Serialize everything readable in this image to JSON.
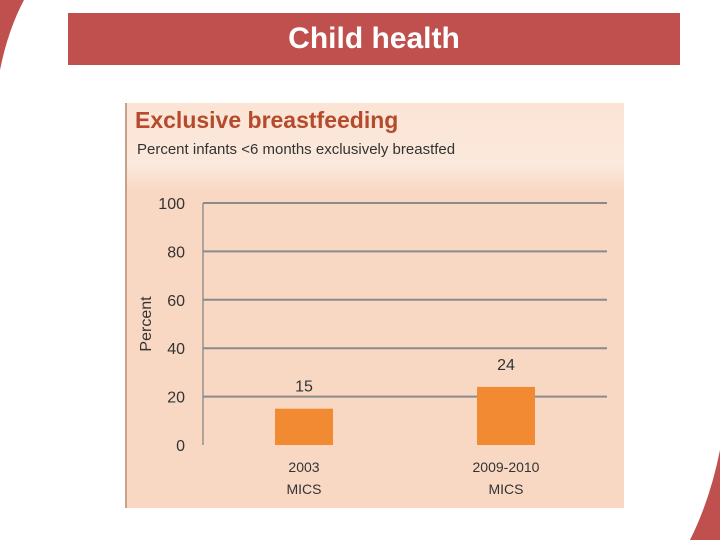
{
  "slide": {
    "title": "Child health"
  },
  "colors": {
    "banner": "#c0504d",
    "panel": "#f8d8c3",
    "bar": "#f28a33",
    "title_text": "#b54a2d",
    "gridline": "#8a8a8a"
  },
  "chart_data": {
    "type": "bar",
    "title": "Exclusive breastfeeding",
    "subtitle": "Percent infants <6 months exclusively breastfed",
    "ylabel": "Percent",
    "xlabel": "",
    "ylim": [
      0,
      100
    ],
    "yticks": [
      0,
      20,
      40,
      60,
      80,
      100
    ],
    "grid": true,
    "categories": [
      [
        "2003",
        "MICS"
      ],
      [
        "2009-2010",
        "MICS"
      ]
    ],
    "values": [
      15,
      24
    ],
    "data_labels": [
      "15",
      "24"
    ]
  }
}
